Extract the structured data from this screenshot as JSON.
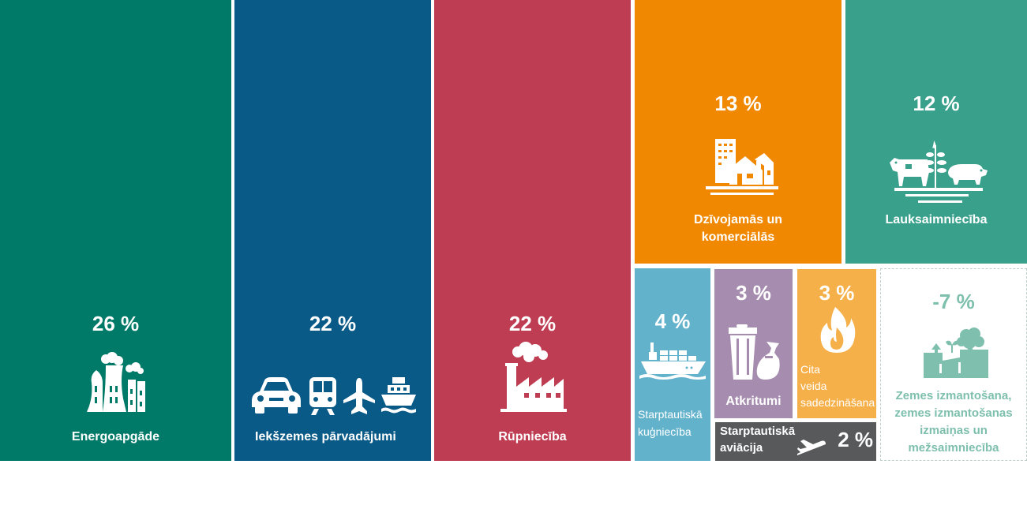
{
  "colors": {
    "energy": "#007a68",
    "transport": "#0a5a88",
    "industry": "#bf3d52",
    "residential": "#f08801",
    "agriculture": "#39a08c",
    "shipping": "#63b2cc",
    "waste": "#a68daf",
    "combustion": "#f6b04a",
    "aviation": "#58595b",
    "landuse": "#7ebfad",
    "landuse_bg": "#ffffff"
  },
  "icons": [
    "power-plant-icon",
    "car-icon",
    "train-icon",
    "airplane-icon",
    "ship-icon",
    "factory-icon",
    "buildings-house-icon",
    "cow-wheat-pig-icon",
    "cargo-ship-icon",
    "trash-can-icon",
    "flame-icon",
    "plane-icon",
    "land-tree-icon"
  ],
  "chart_data": {
    "type": "treemap",
    "unit": "%",
    "categories": [
      "Energoapgāde",
      "Iekšzemes pārvadājumi",
      "Rūpniecība",
      "Dzīvojamās un komerciālās",
      "Lauksaimniecība",
      "Starptautiskā kuģniecība",
      "Atkritumi",
      "Cita veida sadedzināšana",
      "Starptautiskā aviācija",
      "Zemes izmantošana, zemes izmantošanas izmaiņas un mežsaimniecība"
    ],
    "values": [
      26,
      22,
      22,
      13,
      12,
      4,
      3,
      3,
      2,
      -7
    ],
    "tiles": [
      {
        "key": "energy",
        "label": "Energoapgāde",
        "value_text": "26 %",
        "value": 26
      },
      {
        "key": "transport",
        "label": "Iekšzemes pārvadājumi",
        "value_text": "22 %",
        "value": 22
      },
      {
        "key": "industry",
        "label": "Rūpniecība",
        "value_text": "22 %",
        "value": 22
      },
      {
        "key": "residential",
        "label_lines": [
          "Dzīvojamās un",
          "komerciālās"
        ],
        "value_text": "13 %",
        "value": 13
      },
      {
        "key": "agriculture",
        "label": "Lauksaimniecība",
        "value_text": "12 %",
        "value": 12
      },
      {
        "key": "shipping",
        "label_lines": [
          "Starptautiskā",
          "kuģniecība"
        ],
        "value_text": "4 %",
        "value": 4
      },
      {
        "key": "waste",
        "label": "Atkritumi",
        "value_text": "3 %",
        "value": 3
      },
      {
        "key": "combustion",
        "label_lines": [
          "Cita",
          "veida",
          "sadedzināšana"
        ],
        "value_text": "3 %",
        "value": 3
      },
      {
        "key": "aviation",
        "label_lines": [
          "Starptautiskā",
          "aviācija"
        ],
        "value_text": "2 %",
        "value": 2
      },
      {
        "key": "landuse",
        "label_lines": [
          "Zemes izmantošana,",
          "zemes izmantošanas",
          "izmaiņas un",
          "mežsaimniecība"
        ],
        "value_text": "-7 %",
        "value": -7
      }
    ]
  }
}
